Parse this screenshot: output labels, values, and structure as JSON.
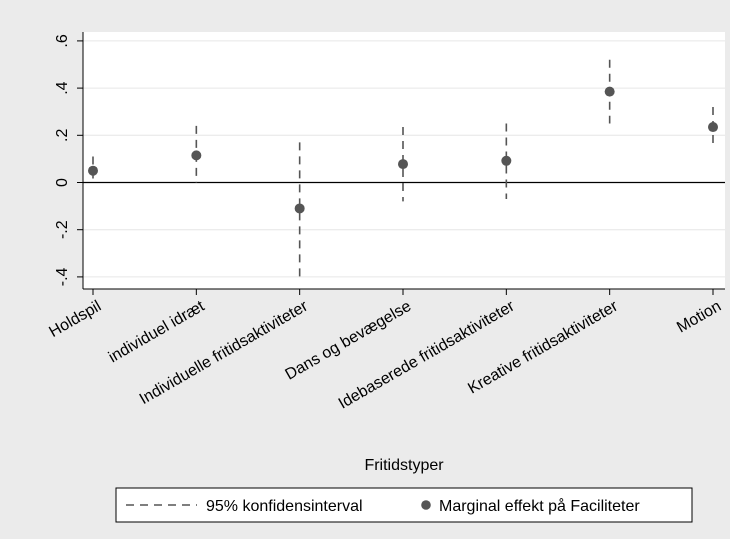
{
  "chart_data": {
    "type": "scatter",
    "title": "",
    "xlabel": "Fritidstyper",
    "ylabel": "",
    "categories": [
      "Holdspil",
      "individuel idræt",
      "Individuelle fritidsaktiviteter",
      "Dans og bevægelse",
      "Idebaserede fritidsaktiviteter",
      "Kreative fritidsaktiviteter",
      "Motion"
    ],
    "series": [
      {
        "name": "Marginal effekt på Faciliteter",
        "values": [
          0.05,
          0.115,
          -0.11,
          0.078,
          0.092,
          0.385,
          0.235
        ]
      },
      {
        "name": "95% konfidensinterval",
        "lower": [
          0.0,
          0.0,
          -0.4,
          -0.08,
          -0.07,
          0.25,
          0.145
        ],
        "upper": [
          0.11,
          0.24,
          0.17,
          0.235,
          0.25,
          0.52,
          0.32
        ]
      }
    ],
    "yticks": [
      -0.4,
      -0.2,
      0,
      0.2,
      0.4,
      0.6
    ],
    "ytick_labels": [
      "-.4",
      "-.2",
      "0",
      ".2",
      ".4",
      ".6"
    ],
    "ylim": [
      -0.45,
      0.65
    ],
    "grid": true,
    "reference_line_y": 0,
    "legend_position": "bottom",
    "colors": {
      "point": "#555555",
      "ci": "#555555",
      "grid": "#e6e6e6",
      "plot_bg": "#ffffff",
      "page_bg": "#ebebeb"
    }
  }
}
